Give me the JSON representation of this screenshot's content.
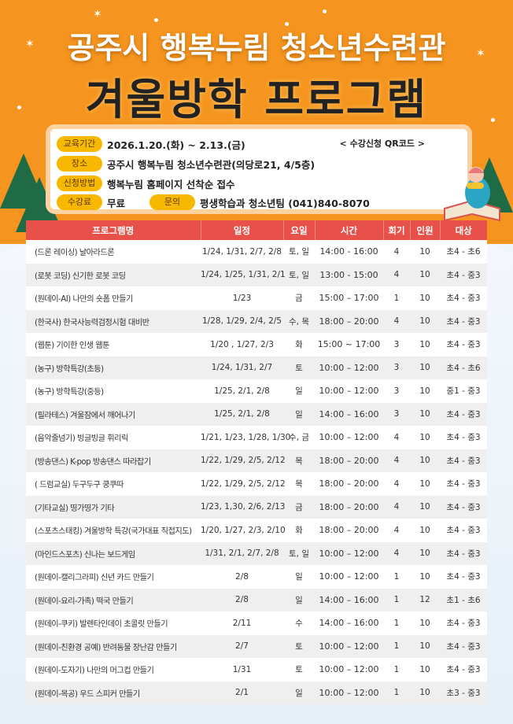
{
  "header": {
    "title_line1": "공주시 행복누림 청소년수련관",
    "title_line2": "겨울방학 프로그램"
  },
  "colors": {
    "background": "#f5951f",
    "table_header": "#e8504a",
    "pill": "#f9b800"
  },
  "info": {
    "period_label": "교육기간",
    "period": "2026.1.20.(화) ~ 2.13.(금)",
    "qr_label": "< 수강신청 QR코드 >",
    "place_label": "장소",
    "place": "공주시 행복누림 청소년수련관(의당로21, 4/5층)",
    "method_label": "신청방법",
    "method": "행복누림 홈페이지 선착순 접수",
    "fee_label": "수강료",
    "fee": "무료",
    "contact_label": "문의",
    "contact": "평생학습과 청소년팀 (041)840-8070"
  },
  "table": {
    "headers": [
      "프로그램명",
      "일정",
      "요일",
      "시간",
      "회기",
      "인원",
      "대상"
    ],
    "rows": [
      [
        "(드론 레이싱) 날아라드론",
        "1/24, 1/31, 2/7, 2/8",
        "토, 일",
        "14:00 - 16:00",
        "4",
        "10",
        "초4 - 초6"
      ],
      [
        "(로봇 코딩) 신기한 로봇 코딩",
        "1/24, 1/25, 1/31, 2/1",
        "토, 일",
        "13:00 - 15:00",
        "4",
        "10",
        "초4 - 중3"
      ],
      [
        "(원데이-AI) 나만의 숏폼 만들기",
        "1/23",
        "금",
        "15:00 – 17:00",
        "1",
        "10",
        "초4 - 중3"
      ],
      [
        "(한국사) 한국사능력검정시험 대비반",
        "1/28, 1/29, 2/4, 2/5",
        "수, 목",
        "18:00 – 20:00",
        "4",
        "10",
        "초4 - 중3"
      ],
      [
        "(웹툰) 기이한 인생 웹툰",
        "1/20 , 1/27, 2/3",
        "화",
        "15:00 ~ 17:00",
        "3",
        "10",
        "초4 - 중3"
      ],
      [
        "(농구) 방학특강(초등)",
        "1/24, 1/31, 2/7",
        "토",
        "10:00 – 12:00",
        "3",
        "10",
        "초4 - 초6"
      ],
      [
        "(농구) 방학특강(중등)",
        "1/25, 2/1, 2/8",
        "일",
        "10:00 – 12:00",
        "3",
        "10",
        "중1 - 중3"
      ],
      [
        "(필라테스) 겨울잠에서 깨어나기",
        "1/25, 2/1, 2/8",
        "일",
        "14:00 – 16:00",
        "3",
        "10",
        "초4 - 중3"
      ],
      [
        "(음악줄넘기) 빙글빙글 휘리릭",
        "1/21, 1/23, 1/28, 1/30",
        "수, 금",
        "10:00 – 12:00",
        "4",
        "10",
        "초4 - 중3"
      ],
      [
        "(방송댄스) K-pop 방송댄스 따라잡기",
        "1/22, 1/29, 2/5, 2/12",
        "목",
        "18:00 – 20:00",
        "4",
        "10",
        "초4 - 중3"
      ],
      [
        "( 드럼교실) 두구두구 쿵쿠따",
        "1/22, 1/29, 2/5, 2/12",
        "목",
        "18:00 – 20:00",
        "4",
        "10",
        "초4 - 중3"
      ],
      [
        "(기타교실) 띵가띵가 기타",
        "1/23, 1,30, 2/6, 2/13",
        "금",
        "18:00 – 20:00",
        "4",
        "10",
        "초4 - 중3"
      ],
      [
        "(스포츠스태킹) 겨울방학 특강(국가대표 직접지도)",
        "1/20, 1/27, 2/3, 2/10",
        "화",
        "18:00 – 20:00",
        "4",
        "10",
        "초4 - 중3"
      ],
      [
        "(마인드스포츠) 신나는 보드게임",
        "1/31, 2/1, 2/7, 2/8",
        "토, 일",
        "10:00 – 12:00",
        "4",
        "10",
        "초4 - 중3"
      ],
      [
        "(원데이-캘리그라피) 신년 카드 만들기",
        "2/8",
        "일",
        "10:00 – 12:00",
        "1",
        "10",
        "초4 - 중3"
      ],
      [
        "(원데이-요리-가족) 떡국 만들기",
        "2/8",
        "일",
        "14:00 – 16:00",
        "1",
        "12",
        "초1 - 초6"
      ],
      [
        "(원데이-쿠키) 발렌타인데이 초콜릿 만들기",
        "2/11",
        "수",
        "14:00 – 16:00",
        "1",
        "10",
        "초4 - 중3"
      ],
      [
        "(원데이-친환경 공예) 반려동물 장난감 만들기",
        "2/7",
        "토",
        "10:00 – 12:00",
        "1",
        "10",
        "초4 - 중3"
      ],
      [
        "(원데이-도자기) 나만의 머그컵 만들기",
        "1/31",
        "토",
        "10:00 – 12:00",
        "1",
        "10",
        "초4 - 중3"
      ],
      [
        "(원데이-목공) 우드 스피커 만들기",
        "2/1",
        "일",
        "10:00 – 12:00",
        "1",
        "10",
        "초3 - 중3"
      ]
    ]
  }
}
